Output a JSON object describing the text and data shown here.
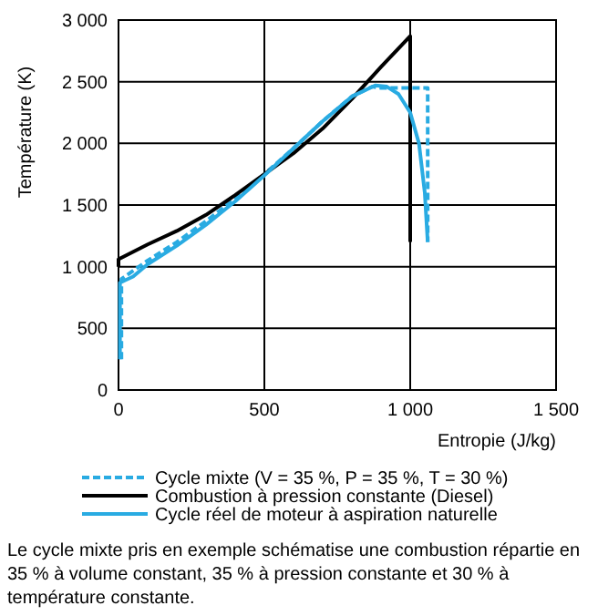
{
  "chart_data": {
    "type": "line",
    "xlabel": "Entropie (J/kg)",
    "ylabel": "Température (K)",
    "xlim": [
      0,
      1500
    ],
    "ylim": [
      0,
      3000
    ],
    "xticks": [
      0,
      500,
      {
        "value": 1000,
        "label": "1 000"
      },
      {
        "value": 1500,
        "label": "1 500"
      }
    ],
    "yticks": [
      0,
      500,
      {
        "value": 1000,
        "label": "1 000"
      },
      {
        "value": 1500,
        "label": "1 500"
      },
      {
        "value": 2000,
        "label": "2 000"
      },
      {
        "value": 2500,
        "label": "2 500"
      },
      {
        "value": 3000,
        "label": "3 000"
      }
    ],
    "grid": true,
    "legend": "bottom",
    "series": [
      {
        "name": "Cycle mixte (V = 35 %, P = 35 %, T = 30 %)",
        "color": "#29abe2",
        "line_style": "dashed",
        "x": [
          10,
          10,
          100,
          200,
          300,
          400,
          500,
          600,
          700,
          800,
          870,
          900,
          1060,
          1060
        ],
        "values": [
          250,
          900,
          1050,
          1200,
          1370,
          1550,
          1750,
          1960,
          2180,
          2380,
          2460,
          2450,
          2450,
          1200
        ]
      },
      {
        "name": "Combustion à pression constante (Diesel)",
        "color": "#000000",
        "line_style": "solid",
        "x": [
          0,
          0,
          100,
          200,
          300,
          400,
          500,
          600,
          700,
          800,
          900,
          1000,
          1000
        ],
        "values": [
          1000,
          1060,
          1180,
          1290,
          1420,
          1580,
          1750,
          1920,
          2120,
          2360,
          2620,
          2870,
          1200
        ]
      },
      {
        "name": "Cycle réel de moteur à aspiration naturelle",
        "color": "#29abe2",
        "line_style": "solid",
        "x": [
          5,
          5,
          50,
          100,
          200,
          300,
          400,
          500,
          600,
          700,
          800,
          880,
          920,
          960,
          1000,
          1030,
          1050,
          1060
        ],
        "values": [
          250,
          870,
          920,
          1020,
          1170,
          1340,
          1530,
          1740,
          1960,
          2180,
          2380,
          2470,
          2460,
          2400,
          2250,
          2000,
          1600,
          1200
        ]
      }
    ],
    "annotations": [
      "Le cycle mixte pris en exemple schématise une combustion répartie en 35 % à volume constant, 35 % à pression constante et 30 % à température constante."
    ]
  }
}
